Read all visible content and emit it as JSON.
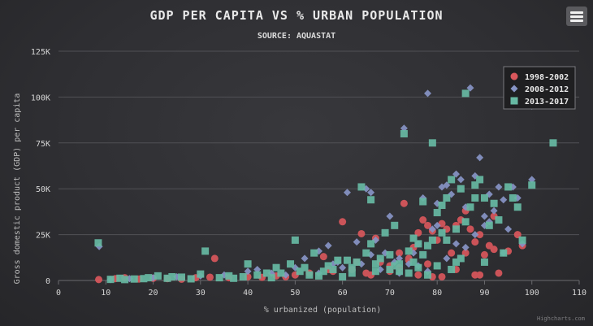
{
  "chart_data": {
    "type": "scatter",
    "title": "GDP PER CAPITA VS % URBAN POPULATION",
    "subtitle": "SOURCE: AQUASTAT",
    "xlabel": "% urbanized (population)",
    "ylabel": "Gross domestic product (GDP) per capita",
    "xlim": [
      0,
      110
    ],
    "ylim": [
      0,
      125000
    ],
    "x_ticks": [
      "0",
      "10",
      "20",
      "30",
      "40",
      "50",
      "60",
      "70",
      "80",
      "90",
      "100",
      "110"
    ],
    "y_ticks": [
      "0",
      "25K",
      "50K",
      "75K",
      "100K",
      "125K"
    ],
    "grid": "horizontal",
    "legend_position": "top-right",
    "credits": "Highcharts.com",
    "series": [
      {
        "name": "1998-2002",
        "marker": "circle",
        "color": "#d9575c",
        "points": [
          [
            8.5,
            500
          ],
          [
            12,
            1000
          ],
          [
            14,
            1500
          ],
          [
            17,
            800
          ],
          [
            20,
            1200
          ],
          [
            23,
            1000
          ],
          [
            26,
            700
          ],
          [
            29,
            1500
          ],
          [
            32,
            1800
          ],
          [
            33,
            12000
          ],
          [
            36,
            1500
          ],
          [
            40,
            2000
          ],
          [
            43,
            1700
          ],
          [
            46,
            2500
          ],
          [
            50,
            3000
          ],
          [
            53,
            4000
          ],
          [
            56,
            13000
          ],
          [
            58,
            5000
          ],
          [
            60,
            32000
          ],
          [
            62,
            6000
          ],
          [
            64,
            25500
          ],
          [
            65,
            4000
          ],
          [
            67,
            23000
          ],
          [
            68,
            10000
          ],
          [
            70,
            8000
          ],
          [
            72,
            15000
          ],
          [
            73,
            42000
          ],
          [
            74,
            11000
          ],
          [
            75,
            18000
          ],
          [
            76,
            26000
          ],
          [
            77,
            33000
          ],
          [
            78,
            30000
          ],
          [
            79,
            27000
          ],
          [
            80,
            22000
          ],
          [
            81,
            31000
          ],
          [
            82,
            28000
          ],
          [
            83,
            15000
          ],
          [
            84,
            30000
          ],
          [
            85,
            33000
          ],
          [
            86,
            38000
          ],
          [
            87,
            28000
          ],
          [
            88,
            21000
          ],
          [
            89,
            25000
          ],
          [
            90,
            14000
          ],
          [
            91,
            19000
          ],
          [
            92,
            35000
          ],
          [
            93,
            4000
          ],
          [
            95,
            16000
          ],
          [
            97,
            25000
          ],
          [
            98,
            19000
          ],
          [
            66,
            3000
          ],
          [
            76,
            3000
          ],
          [
            79,
            2000
          ],
          [
            84,
            6000
          ],
          [
            89,
            3000
          ],
          [
            63,
            10000
          ],
          [
            57,
            6000
          ],
          [
            70,
            5000
          ],
          [
            48,
            2000
          ],
          [
            74,
            12000
          ],
          [
            86,
            15000
          ],
          [
            78,
            9000
          ],
          [
            88,
            3000
          ],
          [
            81,
            2000
          ],
          [
            92,
            17000
          ],
          [
            72,
            7000
          ]
        ]
      },
      {
        "name": "2008-2012",
        "marker": "diamond",
        "color": "#8794c6",
        "points": [
          [
            8.6,
            18500
          ],
          [
            11,
            500
          ],
          [
            15,
            1000
          ],
          [
            20,
            1500
          ],
          [
            25,
            2000
          ],
          [
            30,
            2500
          ],
          [
            35,
            3000
          ],
          [
            40,
            5000
          ],
          [
            45,
            4000
          ],
          [
            50,
            7000
          ],
          [
            52,
            12000
          ],
          [
            55,
            16000
          ],
          [
            57,
            19000
          ],
          [
            59,
            10000
          ],
          [
            61,
            48000
          ],
          [
            63,
            21000
          ],
          [
            65,
            50000
          ],
          [
            66,
            48000
          ],
          [
            67,
            22000
          ],
          [
            69,
            15000
          ],
          [
            70,
            35000
          ],
          [
            72,
            12000
          ],
          [
            73,
            83000
          ],
          [
            74,
            9000
          ],
          [
            75,
            15000
          ],
          [
            76,
            20000
          ],
          [
            77,
            45000
          ],
          [
            78,
            102000
          ],
          [
            79,
            28000
          ],
          [
            80,
            42000
          ],
          [
            81,
            51000
          ],
          [
            82,
            52000
          ],
          [
            83,
            47000
          ],
          [
            84,
            58000
          ],
          [
            85,
            55000
          ],
          [
            86,
            40000
          ],
          [
            87,
            105000
          ],
          [
            88,
            57000
          ],
          [
            89,
            67000
          ],
          [
            90,
            35000
          ],
          [
            91,
            47000
          ],
          [
            92,
            38000
          ],
          [
            93,
            51000
          ],
          [
            94,
            44000
          ],
          [
            95,
            28000
          ],
          [
            96,
            51000
          ],
          [
            97,
            45000
          ],
          [
            98,
            20000
          ],
          [
            100,
            95000
          ],
          [
            100,
            55000
          ],
          [
            60,
            7000
          ],
          [
            64,
            9000
          ],
          [
            68,
            6000
          ],
          [
            78,
            5000
          ],
          [
            82,
            12000
          ],
          [
            86,
            18000
          ],
          [
            90,
            30000
          ],
          [
            71,
            10000
          ],
          [
            55,
            4000
          ],
          [
            48,
            3000
          ],
          [
            84,
            20000
          ],
          [
            80,
            30000
          ],
          [
            76,
            8000
          ],
          [
            72,
            4000
          ],
          [
            88,
            25000
          ],
          [
            94,
            15000
          ],
          [
            58,
            9000
          ],
          [
            42,
            6000
          ],
          [
            66,
            14000
          ],
          [
            91,
            32000
          ]
        ]
      },
      {
        "name": "2013-2017",
        "marker": "square",
        "color": "#67b9a3",
        "points": [
          [
            8.4,
            20500
          ],
          [
            11,
            600
          ],
          [
            13,
            1200
          ],
          [
            16,
            800
          ],
          [
            19,
            1500
          ],
          [
            21,
            2500
          ],
          [
            23,
            1200
          ],
          [
            26,
            1800
          ],
          [
            28,
            900
          ],
          [
            30,
            3500
          ],
          [
            31,
            16000
          ],
          [
            34,
            1500
          ],
          [
            37,
            1200
          ],
          [
            39,
            2000
          ],
          [
            40,
            9000
          ],
          [
            42,
            3000
          ],
          [
            45,
            1500
          ],
          [
            47,
            4000
          ],
          [
            49,
            9000
          ],
          [
            50,
            22000
          ],
          [
            52,
            7000
          ],
          [
            54,
            15000
          ],
          [
            55,
            2500
          ],
          [
            56,
            5000
          ],
          [
            58,
            6000
          ],
          [
            60,
            2000
          ],
          [
            61,
            11000
          ],
          [
            62,
            4000
          ],
          [
            63,
            10000
          ],
          [
            64,
            51000
          ],
          [
            65,
            15000
          ],
          [
            66,
            44000
          ],
          [
            67,
            9000
          ],
          [
            68,
            12000
          ],
          [
            69,
            26000
          ],
          [
            70,
            6000
          ],
          [
            71,
            30000
          ],
          [
            72,
            5000
          ],
          [
            73,
            80000
          ],
          [
            74,
            16000
          ],
          [
            75,
            10000
          ],
          [
            76,
            20000
          ],
          [
            77,
            43000
          ],
          [
            78,
            19000
          ],
          [
            79,
            75000
          ],
          [
            80,
            37000
          ],
          [
            81,
            41000
          ],
          [
            82,
            45000
          ],
          [
            83,
            55000
          ],
          [
            84,
            28000
          ],
          [
            85,
            50000
          ],
          [
            86,
            102000
          ],
          [
            87,
            40000
          ],
          [
            88,
            52000
          ],
          [
            89,
            55000
          ],
          [
            90,
            45000
          ],
          [
            91,
            30000
          ],
          [
            92,
            42000
          ],
          [
            93,
            33000
          ],
          [
            94,
            15000
          ],
          [
            95,
            51000
          ],
          [
            96,
            45000
          ],
          [
            97,
            40000
          ],
          [
            98,
            22000
          ],
          [
            100,
            52000
          ],
          [
            104.5,
            75000
          ],
          [
            44,
            4000
          ],
          [
            46,
            7000
          ],
          [
            51,
            5000
          ],
          [
            53,
            3000
          ],
          [
            57,
            8000
          ],
          [
            59,
            11000
          ],
          [
            67,
            5000
          ],
          [
            71,
            8000
          ],
          [
            74,
            4000
          ],
          [
            76,
            7000
          ],
          [
            78,
            3000
          ],
          [
            80,
            8000
          ],
          [
            82,
            22000
          ],
          [
            84,
            10000
          ],
          [
            86,
            32000
          ],
          [
            88,
            45000
          ],
          [
            36,
            2500
          ],
          [
            24,
            2000
          ],
          [
            18,
            1000
          ],
          [
            14,
            500
          ],
          [
            62,
            7000
          ],
          [
            66,
            20000
          ],
          [
            70,
            14000
          ],
          [
            72,
            9000
          ],
          [
            75,
            23000
          ],
          [
            77,
            14000
          ],
          [
            79,
            22000
          ],
          [
            81,
            26000
          ],
          [
            83,
            6000
          ],
          [
            85,
            12000
          ],
          [
            90,
            10000
          ]
        ]
      }
    ]
  }
}
